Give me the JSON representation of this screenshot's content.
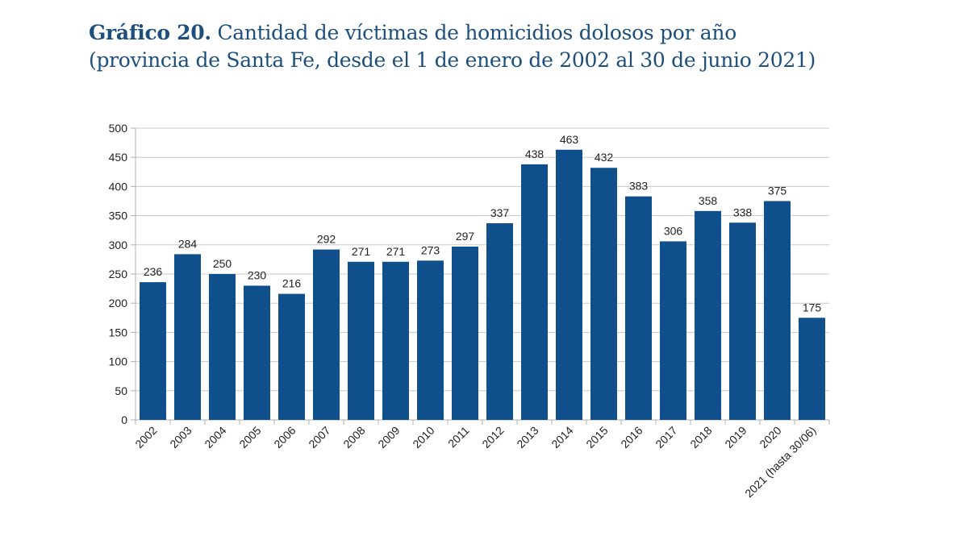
{
  "title": {
    "bold": "Gráfico 20.",
    "line1": "Cantidad de víctimas de homicidios dolosos por año",
    "line2": "(provincia de Santa Fe, desde el 1 de enero de 2002 al 30 de junio 2021)"
  },
  "chart_data": {
    "type": "bar",
    "title": "Gráfico 20. Cantidad de víctimas de homicidios dolosos por año (provincia de Santa Fe, desde el 1 de enero de 2002 al 30 de junio 2021)",
    "categories": [
      "2002",
      "2003",
      "2004",
      "2005",
      "2006",
      "2007",
      "2008",
      "2009",
      "2010",
      "2011",
      "2012",
      "2013",
      "2014",
      "2015",
      "2016",
      "2017",
      "2018",
      "2019",
      "2020",
      "2021 (hasta 30/06)"
    ],
    "values": [
      236,
      284,
      250,
      230,
      216,
      292,
      271,
      271,
      273,
      297,
      337,
      438,
      463,
      432,
      383,
      306,
      358,
      338,
      375,
      175
    ],
    "xlabel": "",
    "ylabel": "",
    "ylim": [
      0,
      500
    ],
    "yticks": [
      0,
      50,
      100,
      150,
      200,
      250,
      300,
      350,
      400,
      450,
      500
    ],
    "grid": true,
    "bar_color": "#0f4f8b",
    "data_labels": true
  }
}
